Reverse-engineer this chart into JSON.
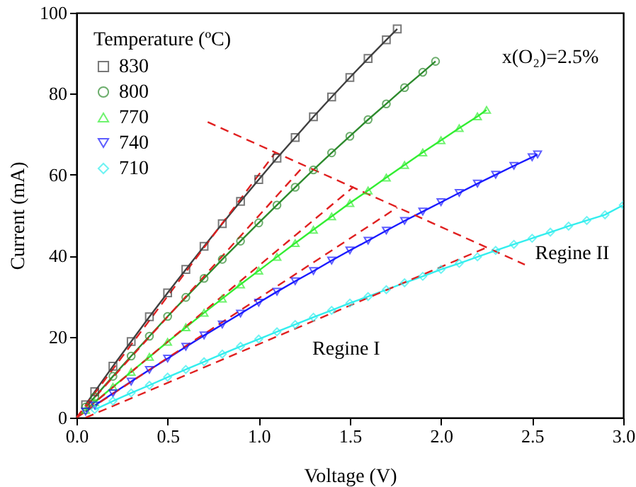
{
  "chart_data": {
    "type": "line",
    "xlabel": "Voltage (V)",
    "ylabel": "Current (mA)",
    "legend_title": "Temperature (ºC)",
    "legend": "top left",
    "grid": false,
    "xlim": [
      0,
      3
    ],
    "xticks": [
      {
        "value": 0,
        "label": "0.0"
      },
      0.5,
      {
        "value": 1,
        "label": "1.0"
      },
      1.5,
      {
        "value": 2,
        "label": "2.0"
      },
      2.5,
      {
        "value": 3,
        "label": "3.0"
      }
    ],
    "ylim": [
      0,
      100
    ],
    "yticks": [
      0,
      20,
      40,
      60,
      80,
      100
    ],
    "annotations": [
      "x(O₂)=2.5%",
      "Regine I",
      "Regine II"
    ],
    "series": [
      {
        "name": "830",
        "color": "#404040",
        "marker": "square",
        "x": [
          0.05,
          0.1,
          0.2,
          0.3,
          0.4,
          0.5,
          0.6,
          0.7,
          0.8,
          0.9,
          1.0,
          1.1,
          1.2,
          1.3,
          1.4,
          1.5,
          1.6,
          1.7,
          1.76
        ],
        "values": [
          3.2,
          6.4,
          12.7,
          18.8,
          24.9,
          30.8,
          36.6,
          42.3,
          47.9,
          53.4,
          58.8,
          64.1,
          69.2,
          74.3,
          79.2,
          84,
          88.7,
          93.3,
          96
        ]
      },
      {
        "name": "800",
        "color": "#2e8b2e",
        "marker": "circle",
        "x": [
          0.05,
          0.1,
          0.2,
          0.3,
          0.4,
          0.5,
          0.6,
          0.7,
          0.8,
          0.9,
          1.0,
          1.1,
          1.2,
          1.3,
          1.4,
          1.5,
          1.6,
          1.7,
          1.8,
          1.9,
          1.97
        ],
        "values": [
          2.6,
          5.1,
          10.2,
          15.2,
          20.1,
          25,
          29.7,
          34.4,
          39.1,
          43.6,
          48.1,
          52.5,
          56.9,
          61.2,
          65.4,
          69.5,
          73.6,
          77.5,
          81.5,
          85.3,
          88
        ]
      },
      {
        "name": "770",
        "color": "#33ee33",
        "marker": "triangle",
        "x": [
          0.05,
          0.1,
          0.2,
          0.3,
          0.4,
          0.5,
          0.6,
          0.7,
          0.8,
          0.9,
          1.0,
          1.1,
          1.2,
          1.3,
          1.4,
          1.5,
          1.6,
          1.7,
          1.8,
          1.9,
          2.0,
          2.1,
          2.2,
          2.25
        ],
        "values": [
          1.9,
          3.8,
          7.6,
          11.3,
          15,
          18.7,
          22.3,
          25.9,
          29.4,
          32.9,
          36.3,
          39.7,
          43.1,
          46.4,
          49.7,
          53,
          56.1,
          59.3,
          62.4,
          65.5,
          68.5,
          71.5,
          74.4,
          76
        ]
      },
      {
        "name": "740",
        "color": "#1a1aff",
        "marker": "triangle-down",
        "x": [
          0.05,
          0.1,
          0.2,
          0.3,
          0.4,
          0.5,
          0.6,
          0.7,
          0.8,
          0.9,
          1.0,
          1.1,
          1.2,
          1.3,
          1.4,
          1.5,
          1.6,
          1.7,
          1.8,
          1.9,
          2.0,
          2.1,
          2.2,
          2.3,
          2.4,
          2.5,
          2.53
        ],
        "values": [
          1.5,
          3,
          6,
          8.9,
          11.8,
          14.6,
          17.5,
          20.3,
          23,
          25.7,
          28.4,
          31.1,
          33.7,
          36.2,
          38.8,
          41.3,
          43.7,
          46.2,
          48.6,
          50.9,
          53.2,
          55.5,
          57.8,
          60,
          62.2,
          64.3,
          65
        ]
      },
      {
        "name": "710",
        "color": "#33eeee",
        "marker": "diamond",
        "x": [
          0.1,
          0.2,
          0.3,
          0.4,
          0.5,
          0.6,
          0.7,
          0.8,
          0.9,
          1.0,
          1.1,
          1.2,
          1.3,
          1.4,
          1.5,
          1.6,
          1.7,
          1.8,
          1.9,
          2.0,
          2.1,
          2.2,
          2.3,
          2.4,
          2.5,
          2.6,
          2.7,
          2.8,
          2.9,
          3.0
        ],
        "values": [
          2,
          4.1,
          6.1,
          8,
          10,
          11.9,
          13.8,
          15.7,
          17.6,
          19.4,
          21.2,
          23,
          24.8,
          26.5,
          28.3,
          29.9,
          31.6,
          33.3,
          34.9,
          36.6,
          38.1,
          39.7,
          41.3,
          42.8,
          44.3,
          45.8,
          47.3,
          48.7,
          50.1,
          52.5
        ]
      },
      {
        "color": "#e02020",
        "marker": "none",
        "line_style": "dashed",
        "x": [
          0,
          1.09
        ],
        "values": [
          0,
          65.4
        ]
      },
      {
        "color": "#e02020",
        "marker": "none",
        "line_style": "dashed",
        "x": [
          0,
          1.25
        ],
        "values": [
          0,
          62.3
        ]
      },
      {
        "color": "#e02020",
        "marker": "none",
        "line_style": "dashed",
        "x": [
          0,
          1.52
        ],
        "values": [
          0,
          57
        ]
      },
      {
        "color": "#e02020",
        "marker": "none",
        "line_style": "dashed",
        "x": [
          0,
          1.76
        ],
        "values": [
          0,
          51.9
        ]
      },
      {
        "color": "#e02020",
        "marker": "none",
        "line_style": "dashed",
        "x": [
          0.05,
          2.25
        ],
        "values": [
          0,
          42
        ]
      },
      {
        "color": "#e02020",
        "marker": "none",
        "line_style": "dashed",
        "x": [
          0.72,
          2.46
        ],
        "values": [
          73,
          37.8
        ]
      }
    ]
  }
}
